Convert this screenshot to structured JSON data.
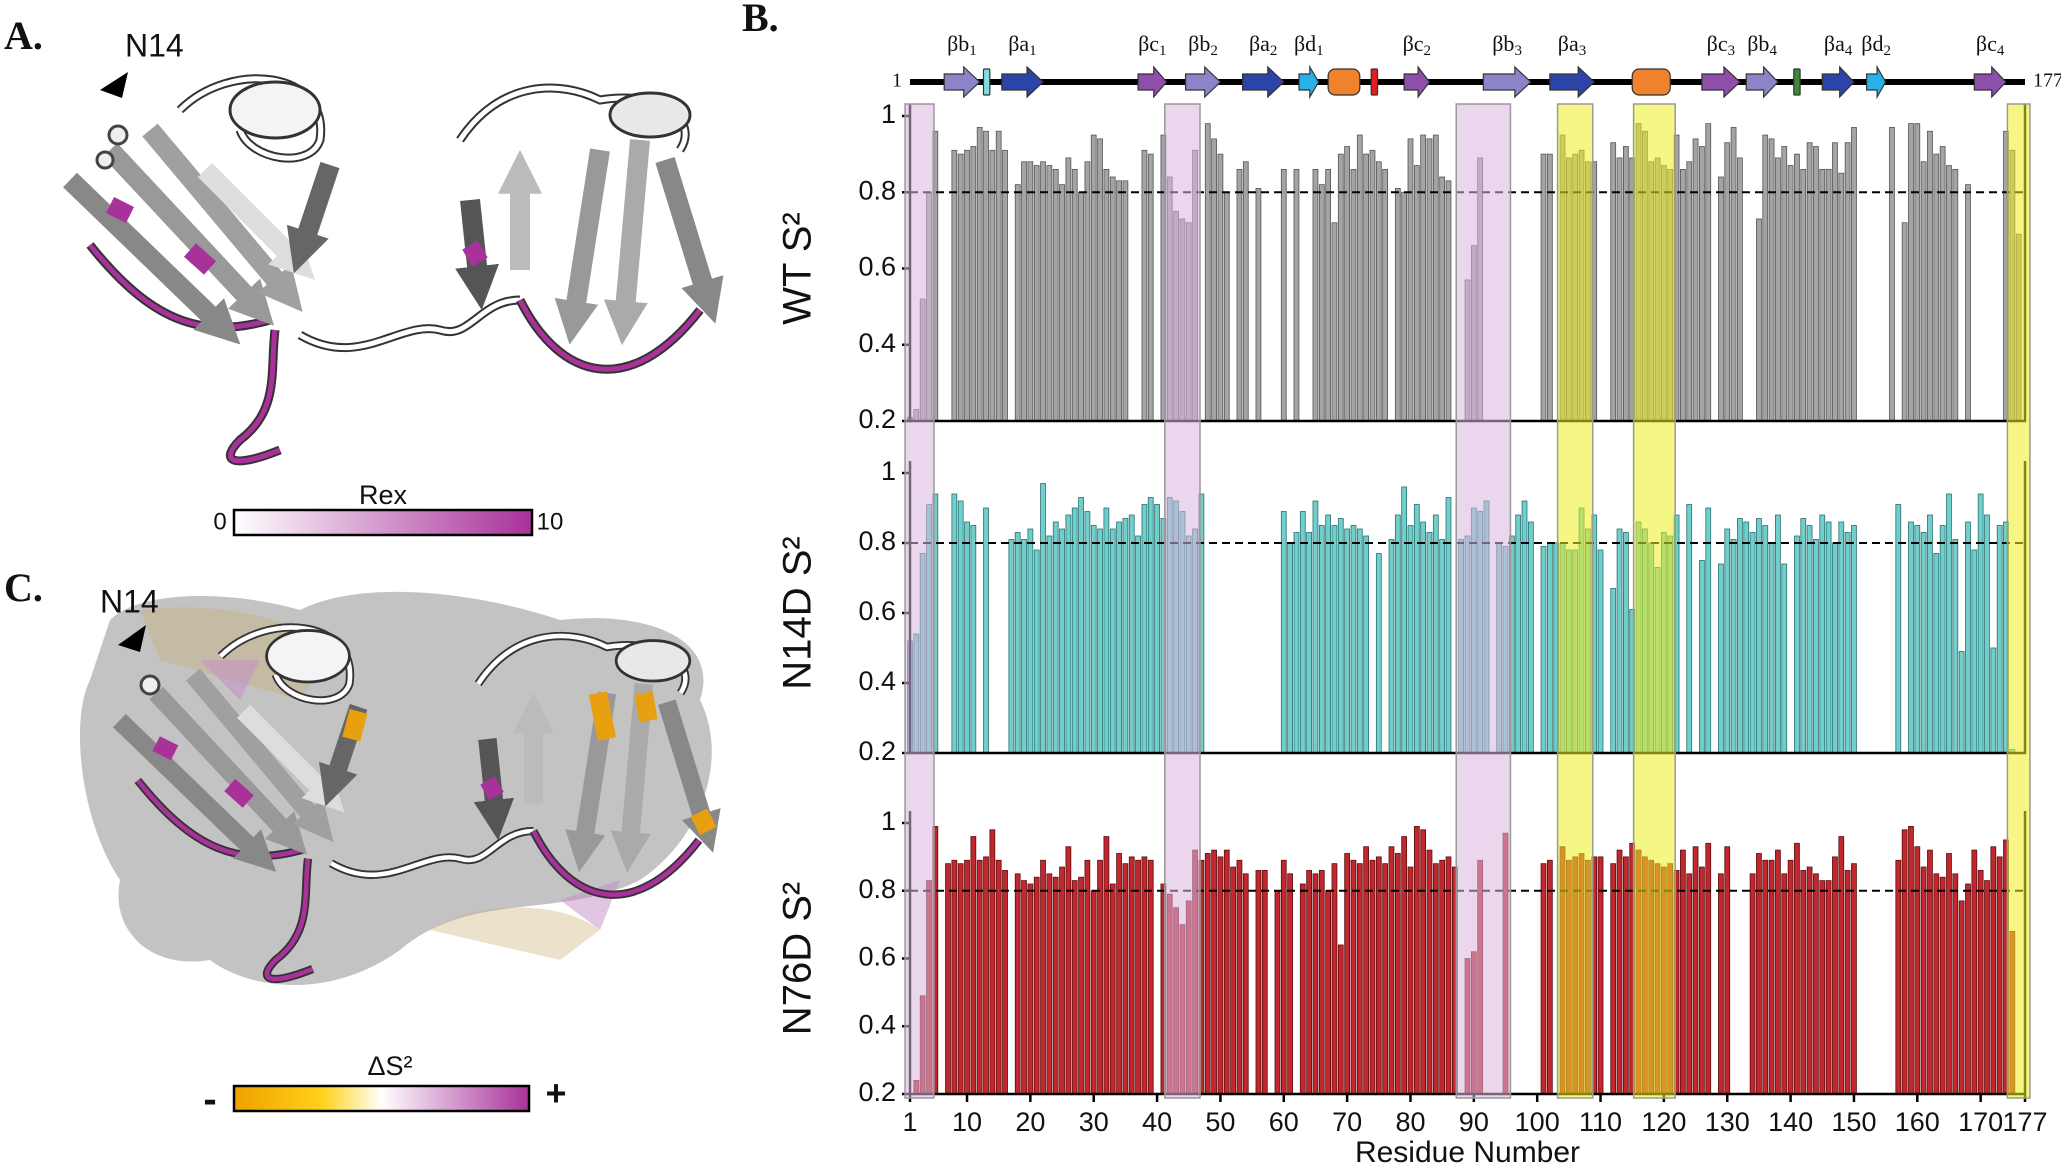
{
  "figure_labels": {
    "a": "A.",
    "b": "B.",
    "c": "C."
  },
  "panel_a": {
    "residue_label": "N14",
    "colorbar": {
      "title": "Rex",
      "range": [
        0,
        10
      ]
    }
  },
  "panel_c": {
    "residue_label": "N14",
    "colorbar": {
      "title": "ΔS²",
      "low": "-",
      "high": "+"
    }
  },
  "secondary_structure": {
    "start": 1,
    "end": 177,
    "elements": [
      {
        "label": "βb",
        "sub": "1",
        "range": [
          6.4,
          12
        ],
        "shape": "arrow",
        "color": "#8c84c8"
      },
      {
        "range": [
          12.6,
          13.6
        ],
        "shape": "rect",
        "color": "#7fdde0"
      },
      {
        "label": "βa",
        "sub": "1",
        "range": [
          15.5,
          22
        ],
        "shape": "arrow",
        "color": "#2c44a8"
      },
      {
        "label": "βc",
        "sub": "1",
        "range": [
          37,
          41.5
        ],
        "shape": "arrow",
        "color": "#8e4faa"
      },
      {
        "label": "βb",
        "sub": "2",
        "range": [
          44.5,
          50
        ],
        "shape": "arrow",
        "color": "#8c84c8"
      },
      {
        "label": "βa",
        "sub": "2",
        "range": [
          53.5,
          60
        ],
        "shape": "arrow",
        "color": "#2c44a8"
      },
      {
        "label": "βd",
        "sub": "1",
        "range": [
          62.4,
          65.5
        ],
        "shape": "arrow",
        "color": "#2ab0e8"
      },
      {
        "range": [
          67,
          72
        ],
        "shape": "roundrect",
        "color": "#f0822e"
      },
      {
        "range": [
          73.8,
          74.8
        ],
        "shape": "rect",
        "color": "#e02020"
      },
      {
        "label": "βc",
        "sub": "2",
        "range": [
          79,
          83
        ],
        "shape": "arrow",
        "color": "#8e4faa"
      },
      {
        "label": "βb",
        "sub": "3",
        "range": [
          91.5,
          99
        ],
        "shape": "arrow",
        "color": "#8c84c8"
      },
      {
        "label": "βa",
        "sub": "3",
        "range": [
          102,
          109
        ],
        "shape": "arrow",
        "color": "#2c44a8"
      },
      {
        "range": [
          115,
          121
        ],
        "shape": "roundrect",
        "color": "#f0822e"
      },
      {
        "label": "βc",
        "sub": "3",
        "range": [
          126,
          132
        ],
        "shape": "arrow",
        "color": "#8e4faa"
      },
      {
        "label": "βb",
        "sub": "4",
        "range": [
          133,
          138
        ],
        "shape": "arrow",
        "color": "#8c84c8"
      },
      {
        "range": [
          140.5,
          141.5
        ],
        "shape": "rect",
        "color": "#3a8a3a"
      },
      {
        "label": "βa",
        "sub": "4",
        "range": [
          145,
          150
        ],
        "shape": "arrow",
        "color": "#2c44a8"
      },
      {
        "label": "βd",
        "sub": "2",
        "range": [
          152,
          155
        ],
        "shape": "arrow",
        "color": "#2ab0e8"
      },
      {
        "label": "βc",
        "sub": "4",
        "range": [
          169,
          174
        ],
        "shape": "arrow",
        "color": "#8e4faa"
      }
    ]
  },
  "highlights": [
    {
      "range": [
        1,
        4
      ],
      "color": "#d8b4de"
    },
    {
      "range": [
        42,
        46
      ],
      "color": "#d8b4de"
    },
    {
      "range": [
        88,
        95
      ],
      "color": "#d8b4de"
    },
    {
      "range": [
        104,
        108
      ],
      "color": "#eeee20"
    },
    {
      "range": [
        116,
        121
      ],
      "color": "#eeee20"
    },
    {
      "range": [
        175,
        177
      ],
      "color": "#eeee20"
    }
  ],
  "chart_data": [
    {
      "type": "bar",
      "ylabel": "WT S²",
      "color": "#a4a4a4",
      "stroke": "#555555",
      "xlim": [
        1,
        177
      ],
      "ylim": [
        0.2,
        1
      ],
      "yticks": [
        0.2,
        0.4,
        0.6,
        0.8,
        1
      ],
      "reference_line": 0.8,
      "x": [
        1,
        2,
        3,
        4,
        5,
        6,
        7,
        8,
        9,
        10,
        11,
        12,
        13,
        14,
        15,
        16,
        17,
        18,
        19,
        20,
        21,
        22,
        23,
        24,
        25,
        26,
        27,
        28,
        29,
        30,
        31,
        32,
        33,
        34,
        35,
        36,
        37,
        38,
        39,
        40,
        41,
        42,
        43,
        44,
        45,
        46,
        47,
        48,
        49,
        50,
        51,
        52,
        53,
        54,
        55,
        56,
        57,
        58,
        59,
        60,
        61,
        62,
        63,
        64,
        65,
        66,
        67,
        68,
        69,
        70,
        71,
        72,
        73,
        74,
        75,
        76,
        77,
        78,
        79,
        80,
        81,
        82,
        83,
        84,
        85,
        86,
        87,
        88,
        89,
        90,
        91,
        92,
        93,
        94,
        95,
        96,
        97,
        98,
        99,
        100,
        101,
        102,
        103,
        104,
        105,
        106,
        107,
        108,
        109,
        110,
        111,
        112,
        113,
        114,
        115,
        116,
        117,
        118,
        119,
        120,
        121,
        122,
        123,
        124,
        125,
        126,
        127,
        128,
        129,
        130,
        131,
        132,
        133,
        134,
        135,
        136,
        137,
        138,
        139,
        140,
        141,
        142,
        143,
        144,
        145,
        146,
        147,
        148,
        149,
        150,
        151,
        152,
        153,
        154,
        155,
        156,
        157,
        158,
        159,
        160,
        161,
        162,
        163,
        164,
        165,
        166,
        167,
        168,
        169,
        170,
        171,
        172,
        173,
        174,
        175,
        176,
        177
      ],
      "values": [
        0.21,
        0.23,
        0.52,
        0.8,
        0.96,
        null,
        null,
        0.91,
        0.9,
        0.91,
        0.92,
        0.97,
        0.96,
        0.91,
        0.96,
        0.91,
        null,
        0.82,
        0.88,
        0.88,
        0.87,
        0.88,
        0.87,
        0.86,
        0.82,
        0.89,
        0.86,
        0.8,
        0.88,
        0.95,
        0.94,
        0.86,
        0.84,
        0.83,
        0.83,
        null,
        null,
        0.91,
        0.9,
        null,
        0.95,
        0.84,
        0.75,
        0.73,
        0.72,
        0.91,
        null,
        0.98,
        0.94,
        0.9,
        0.8,
        null,
        0.86,
        0.88,
        null,
        0.81,
        null,
        null,
        null,
        0.86,
        null,
        0.86,
        null,
        null,
        0.86,
        0.82,
        0.86,
        0.72,
        0.9,
        0.92,
        0.86,
        0.95,
        0.9,
        0.91,
        0.88,
        0.86,
        null,
        0.81,
        0.8,
        0.94,
        0.87,
        0.95,
        0.94,
        0.95,
        0.84,
        0.83,
        null,
        null,
        0.57,
        0.66,
        0.89,
        null,
        null,
        null,
        null,
        null,
        null,
        null,
        null,
        null,
        0.9,
        0.9,
        null,
        0.95,
        0.89,
        0.9,
        0.91,
        0.88,
        0.88,
        null,
        null,
        0.93,
        0.89,
        0.92,
        0.89,
        0.98,
        0.96,
        0.88,
        0.89,
        0.87,
        0.86,
        0.95,
        0.86,
        0.88,
        0.94,
        0.92,
        0.98,
        null,
        0.84,
        0.93,
        0.97,
        0.89,
        null,
        null,
        0.73,
        0.95,
        0.94,
        0.89,
        0.92,
        0.87,
        0.9,
        0.86,
        0.93,
        0.92,
        0.86,
        0.86,
        0.93,
        0.85,
        0.93,
        0.97,
        null,
        null,
        null,
        null,
        null,
        0.97,
        null,
        0.72,
        0.98,
        0.98,
        0.88,
        0.96,
        0.9,
        0.92,
        0.87,
        0.86,
        null,
        0.82,
        null,
        null,
        null,
        null,
        null,
        0.96,
        0.91,
        0.69,
        null
      ]
    },
    {
      "type": "bar",
      "ylabel": "N14D S²",
      "color": "#6fcfcc",
      "stroke": "#2f6f6f",
      "xlim": [
        1,
        177
      ],
      "ylim": [
        0.2,
        1
      ],
      "yticks": [
        0.2,
        0.4,
        0.6,
        0.8,
        1
      ],
      "reference_line": 0.8,
      "x": [
        1,
        2,
        3,
        4,
        5,
        6,
        7,
        8,
        9,
        10,
        11,
        12,
        13,
        14,
        15,
        16,
        17,
        18,
        19,
        20,
        21,
        22,
        23,
        24,
        25,
        26,
        27,
        28,
        29,
        30,
        31,
        32,
        33,
        34,
        35,
        36,
        37,
        38,
        39,
        40,
        41,
        42,
        43,
        44,
        45,
        46,
        47,
        48,
        49,
        50,
        51,
        52,
        53,
        54,
        55,
        56,
        57,
        58,
        59,
        60,
        61,
        62,
        63,
        64,
        65,
        66,
        67,
        68,
        69,
        70,
        71,
        72,
        73,
        74,
        75,
        76,
        77,
        78,
        79,
        80,
        81,
        82,
        83,
        84,
        85,
        86,
        87,
        88,
        89,
        90,
        91,
        92,
        93,
        94,
        95,
        96,
        97,
        98,
        99,
        100,
        101,
        102,
        103,
        104,
        105,
        106,
        107,
        108,
        109,
        110,
        111,
        112,
        113,
        114,
        115,
        116,
        117,
        118,
        119,
        120,
        121,
        122,
        123,
        124,
        125,
        126,
        127,
        128,
        129,
        130,
        131,
        132,
        133,
        134,
        135,
        136,
        137,
        138,
        139,
        140,
        141,
        142,
        143,
        144,
        145,
        146,
        147,
        148,
        149,
        150,
        151,
        152,
        153,
        154,
        155,
        156,
        157,
        158,
        159,
        160,
        161,
        162,
        163,
        164,
        165,
        166,
        167,
        168,
        169,
        170,
        171,
        172,
        173,
        174,
        175,
        176,
        177
      ],
      "values": [
        0.52,
        0.54,
        0.77,
        0.91,
        0.94,
        null,
        null,
        0.94,
        0.92,
        0.86,
        0.85,
        null,
        0.9,
        null,
        null,
        null,
        0.81,
        0.83,
        0.81,
        0.84,
        0.78,
        0.97,
        0.82,
        0.86,
        0.84,
        0.88,
        0.9,
        0.93,
        0.89,
        0.85,
        0.84,
        0.9,
        0.84,
        0.86,
        0.87,
        0.88,
        0.82,
        0.91,
        0.93,
        0.91,
        0.87,
        0.93,
        0.92,
        0.89,
        0.82,
        0.84,
        0.94,
        null,
        null,
        null,
        null,
        null,
        null,
        null,
        null,
        null,
        null,
        null,
        null,
        0.89,
        0.8,
        0.83,
        0.89,
        0.83,
        0.92,
        0.85,
        0.88,
        0.85,
        0.87,
        0.84,
        0.85,
        0.84,
        0.82,
        null,
        0.77,
        null,
        0.81,
        0.88,
        0.96,
        0.85,
        0.91,
        0.86,
        0.83,
        0.88,
        0.81,
        0.93,
        null,
        0.81,
        0.82,
        0.9,
        0.89,
        0.92,
        null,
        0.8,
        0.79,
        0.82,
        0.88,
        0.92,
        0.86,
        null,
        0.79,
        0.8,
        0.8,
        0.8,
        0.78,
        0.78,
        0.9,
        0.84,
        0.88,
        0.78,
        null,
        0.67,
        0.84,
        0.83,
        0.61,
        0.86,
        0.84,
        0.8,
        0.73,
        0.83,
        0.82,
        0.88,
        null,
        0.91,
        null,
        0.75,
        0.9,
        null,
        0.74,
        0.84,
        0.81,
        0.87,
        0.86,
        0.83,
        0.87,
        0.85,
        0.8,
        0.88,
        0.74,
        null,
        0.82,
        0.87,
        0.85,
        0.81,
        0.88,
        0.86,
        0.8,
        0.86,
        0.83,
        0.85,
        null,
        null,
        null,
        null,
        null,
        null,
        0.91,
        null,
        0.86,
        0.85,
        0.83,
        0.88,
        0.77,
        0.85,
        0.94,
        0.81,
        0.49,
        0.86,
        0.78,
        0.94,
        0.88,
        0.5,
        0.85,
        0.86,
        0.21,
        null,
        null
      ]
    },
    {
      "type": "bar",
      "ylabel": "N76D S²",
      "xlabel": "Residue Number",
      "color": "#c1272d",
      "stroke": "#5a1010",
      "xlim": [
        1,
        177
      ],
      "xticks": [
        1,
        10,
        20,
        30,
        40,
        50,
        60,
        70,
        80,
        90,
        100,
        110,
        120,
        130,
        140,
        150,
        160,
        170,
        177
      ],
      "ylim": [
        0.2,
        1
      ],
      "yticks": [
        0.2,
        0.4,
        0.6,
        0.8,
        1
      ],
      "reference_line": 0.8,
      "x": [
        1,
        2,
        3,
        4,
        5,
        6,
        7,
        8,
        9,
        10,
        11,
        12,
        13,
        14,
        15,
        16,
        17,
        18,
        19,
        20,
        21,
        22,
        23,
        24,
        25,
        26,
        27,
        28,
        29,
        30,
        31,
        32,
        33,
        34,
        35,
        36,
        37,
        38,
        39,
        40,
        41,
        42,
        43,
        44,
        45,
        46,
        47,
        48,
        49,
        50,
        51,
        52,
        53,
        54,
        55,
        56,
        57,
        58,
        59,
        60,
        61,
        62,
        63,
        64,
        65,
        66,
        67,
        68,
        69,
        70,
        71,
        72,
        73,
        74,
        75,
        76,
        77,
        78,
        79,
        80,
        81,
        82,
        83,
        84,
        85,
        86,
        87,
        88,
        89,
        90,
        91,
        92,
        93,
        94,
        95,
        96,
        97,
        98,
        99,
        100,
        101,
        102,
        103,
        104,
        105,
        106,
        107,
        108,
        109,
        110,
        111,
        112,
        113,
        114,
        115,
        116,
        117,
        118,
        119,
        120,
        121,
        122,
        123,
        124,
        125,
        126,
        127,
        128,
        129,
        130,
        131,
        132,
        133,
        134,
        135,
        136,
        137,
        138,
        139,
        140,
        141,
        142,
        143,
        144,
        145,
        146,
        147,
        148,
        149,
        150,
        151,
        152,
        153,
        154,
        155,
        156,
        157,
        158,
        159,
        160,
        161,
        162,
        163,
        164,
        165,
        166,
        167,
        168,
        169,
        170,
        171,
        172,
        173,
        174,
        175,
        176,
        177
      ],
      "values": [
        0.2,
        0.24,
        0.49,
        0.83,
        0.99,
        null,
        0.88,
        0.89,
        0.88,
        0.89,
        0.96,
        0.89,
        0.9,
        0.98,
        0.89,
        0.86,
        null,
        0.85,
        0.83,
        0.82,
        0.84,
        0.89,
        0.85,
        0.84,
        0.87,
        0.93,
        0.83,
        0.84,
        0.89,
        0.8,
        0.89,
        0.96,
        0.82,
        0.91,
        0.88,
        0.9,
        0.89,
        0.9,
        0.89,
        null,
        0.82,
        0.79,
        0.75,
        0.7,
        0.77,
        0.92,
        0.89,
        0.91,
        0.92,
        0.9,
        0.92,
        0.87,
        0.89,
        0.85,
        null,
        0.86,
        0.86,
        null,
        0.8,
        0.89,
        0.85,
        null,
        0.82,
        0.86,
        0.85,
        0.86,
        0.8,
        0.88,
        0.64,
        0.91,
        0.89,
        0.88,
        0.93,
        0.89,
        0.9,
        0.88,
        0.93,
        0.91,
        0.96,
        0.87,
        0.99,
        0.98,
        0.92,
        0.88,
        0.89,
        0.9,
        0.87,
        null,
        0.6,
        0.62,
        0.89,
        null,
        null,
        null,
        0.97,
        null,
        null,
        null,
        null,
        null,
        0.88,
        0.89,
        null,
        0.93,
        0.89,
        0.9,
        0.91,
        0.89,
        0.9,
        0.9,
        null,
        0.88,
        0.92,
        0.9,
        0.94,
        0.92,
        0.9,
        0.89,
        0.88,
        0.87,
        0.88,
        0.86,
        0.92,
        0.85,
        0.93,
        0.87,
        0.94,
        null,
        0.85,
        0.93,
        null,
        null,
        null,
        0.85,
        0.91,
        0.89,
        0.89,
        0.92,
        0.85,
        0.89,
        0.94,
        0.86,
        0.87,
        0.85,
        0.83,
        0.83,
        0.9,
        0.96,
        0.86,
        0.88,
        null,
        null,
        null,
        null,
        null,
        null,
        0.89,
        0.98,
        0.99,
        0.93,
        0.87,
        0.92,
        0.85,
        0.84,
        0.91,
        0.85,
        0.77,
        0.82,
        0.92,
        0.86,
        0.83,
        0.93,
        0.9,
        0.95,
        0.68,
        null,
        null
      ]
    }
  ]
}
